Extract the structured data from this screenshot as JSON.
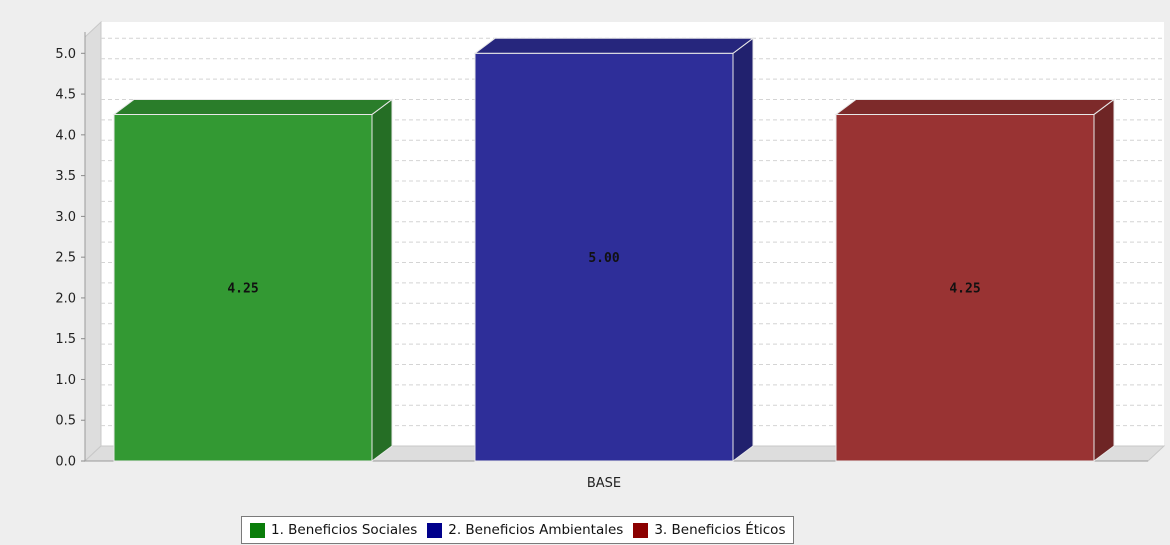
{
  "chart_data": {
    "type": "bar",
    "categories": [
      "BASE"
    ],
    "series": [
      {
        "name": "1. Beneficios Sociales",
        "values": [
          4.25
        ],
        "color": "#339933",
        "label": "4.25"
      },
      {
        "name": "2. Beneficios Ambientales",
        "values": [
          5.0
        ],
        "color": "#2e2e99",
        "label": "5.00"
      },
      {
        "name": "3. Beneficios Éticos",
        "values": [
          4.25
        ],
        "color": "#993333",
        "label": "4.25"
      }
    ],
    "yticks": [
      "0.0",
      "0.5",
      "1.0",
      "1.5",
      "2.0",
      "2.5",
      "3.0",
      "3.5",
      "4.0",
      "4.5",
      "5.0"
    ],
    "ylim": [
      0,
      5.2
    ],
    "title": "",
    "xlabel": "",
    "ylabel": "",
    "grid": true,
    "legend_position": "bottom-center",
    "three_d": true
  },
  "legend": {
    "items": [
      {
        "label": "1. Beneficios Sociales",
        "color": "#0a7d0a"
      },
      {
        "label": "2. Beneficios Ambientales",
        "color": "#00008b"
      },
      {
        "label": "3. Beneficios Éticos",
        "color": "#8b0000"
      }
    ]
  }
}
